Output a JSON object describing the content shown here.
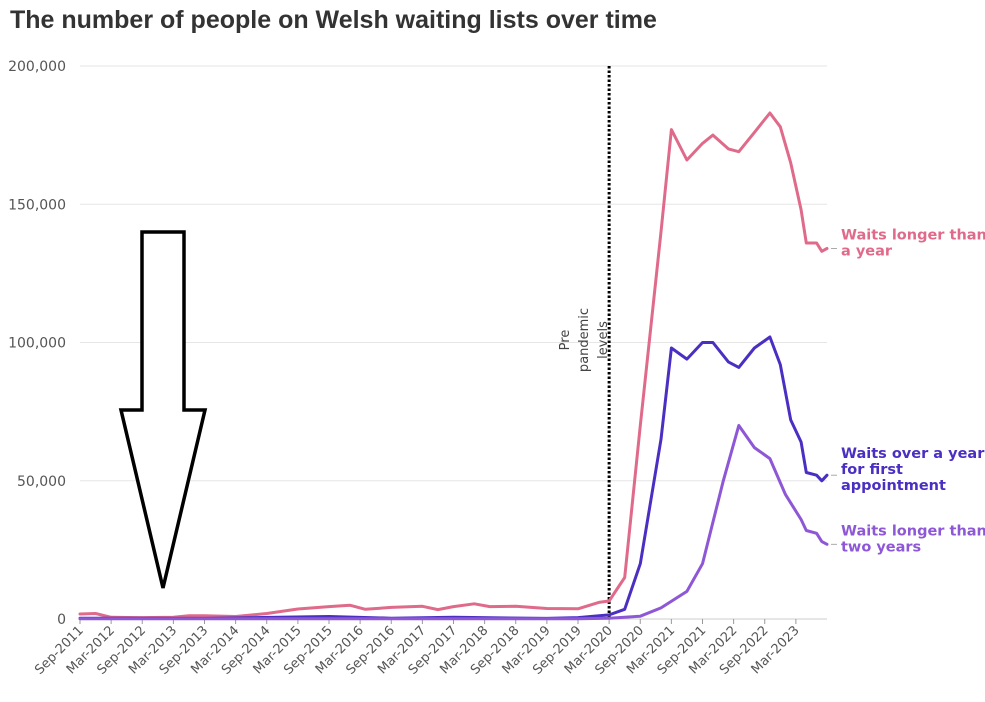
{
  "chart_data": {
    "type": "line",
    "title": "The number of people on Welsh waiting lists over time",
    "ylim": [
      0,
      200000
    ],
    "y_ticks": [
      {
        "value": 0,
        "label": "0"
      },
      {
        "value": 50000,
        "label": "50,000"
      },
      {
        "value": 100000,
        "label": "100,000"
      },
      {
        "value": 150000,
        "label": "150,000"
      },
      {
        "value": 200000,
        "label": "200,000"
      }
    ],
    "x_range": [
      "2011-09",
      "2023-09"
    ],
    "x_ticks": [
      "Sep-2011",
      "Mar-2012",
      "Sep-2012",
      "Mar-2013",
      "Sep-2013",
      "Mar-2014",
      "Sep-2014",
      "Mar-2015",
      "Sep-2015",
      "Mar-2016",
      "Sep-2016",
      "Mar-2017",
      "Sep-2017",
      "Mar-2018",
      "Sep-2018",
      "Mar-2019",
      "Sep-2019",
      "Mar-2020",
      "Sep-2020",
      "Mar-2021",
      "Sep-2021",
      "Mar-2022",
      "Sep-2022",
      "Mar-2023"
    ],
    "grid": true,
    "annotation": {
      "date": "2020-03",
      "lines": [
        "Pre",
        "pandemic",
        "levels"
      ]
    },
    "series": [
      {
        "name": "Waits longer than a year",
        "label_lines": [
          "Waits longer than",
          "a year"
        ],
        "color": "#e06a8a",
        "points": [
          [
            "2011-09",
            1800
          ],
          [
            "2011-12",
            2000
          ],
          [
            "2012-03",
            600
          ],
          [
            "2012-09",
            500
          ],
          [
            "2013-03",
            600
          ],
          [
            "2013-06",
            1200
          ],
          [
            "2013-09",
            1200
          ],
          [
            "2014-03",
            900
          ],
          [
            "2014-09",
            2000
          ],
          [
            "2015-03",
            3600
          ],
          [
            "2015-09",
            4500
          ],
          [
            "2016-01",
            5000
          ],
          [
            "2016-04",
            3500
          ],
          [
            "2016-09",
            4200
          ],
          [
            "2017-03",
            4600
          ],
          [
            "2017-06",
            3400
          ],
          [
            "2017-09",
            4500
          ],
          [
            "2018-01",
            5500
          ],
          [
            "2018-04",
            4500
          ],
          [
            "2018-09",
            4600
          ],
          [
            "2019-03",
            3800
          ],
          [
            "2019-09",
            3700
          ],
          [
            "2020-01",
            6000
          ],
          [
            "2020-03",
            6500
          ],
          [
            "2020-06",
            15000
          ],
          [
            "2020-09",
            70000
          ],
          [
            "2021-01",
            140000
          ],
          [
            "2021-03",
            177000
          ],
          [
            "2021-06",
            166000
          ],
          [
            "2021-09",
            172000
          ],
          [
            "2021-11",
            175000
          ],
          [
            "2022-02",
            170000
          ],
          [
            "2022-04",
            169000
          ],
          [
            "2022-07",
            176000
          ],
          [
            "2022-10",
            183000
          ],
          [
            "2022-12",
            178000
          ],
          [
            "2023-02",
            165000
          ],
          [
            "2023-04",
            148000
          ],
          [
            "2023-05",
            136000
          ],
          [
            "2023-07",
            136000
          ],
          [
            "2023-08",
            133000
          ],
          [
            "2023-09",
            134000
          ]
        ]
      },
      {
        "name": "Waits over a year for first appointment",
        "label_lines": [
          "Waits over a year",
          "for first",
          "appointment"
        ],
        "color": "#4b2fc2",
        "points": [
          [
            "2011-09",
            300
          ],
          [
            "2013-09",
            200
          ],
          [
            "2015-09",
            900
          ],
          [
            "2016-09",
            300
          ],
          [
            "2017-09",
            600
          ],
          [
            "2019-03",
            200
          ],
          [
            "2019-09",
            500
          ],
          [
            "2020-03",
            1500
          ],
          [
            "2020-06",
            3500
          ],
          [
            "2020-09",
            20000
          ],
          [
            "2021-01",
            65000
          ],
          [
            "2021-03",
            98000
          ],
          [
            "2021-06",
            94000
          ],
          [
            "2021-09",
            100000
          ],
          [
            "2021-11",
            100000
          ],
          [
            "2022-02",
            93000
          ],
          [
            "2022-04",
            91000
          ],
          [
            "2022-07",
            98000
          ],
          [
            "2022-10",
            102000
          ],
          [
            "2022-12",
            92000
          ],
          [
            "2023-02",
            72000
          ],
          [
            "2023-04",
            64000
          ],
          [
            "2023-05",
            53000
          ],
          [
            "2023-07",
            52000
          ],
          [
            "2023-08",
            50000
          ],
          [
            "2023-09",
            52000
          ]
        ]
      },
      {
        "name": "Waits longer than two years",
        "label_lines": [
          "Waits longer than",
          "two years"
        ],
        "color": "#8e57d6",
        "points": [
          [
            "2011-09",
            100
          ],
          [
            "2019-09",
            100
          ],
          [
            "2020-03",
            300
          ],
          [
            "2020-09",
            1000
          ],
          [
            "2021-01",
            4000
          ],
          [
            "2021-06",
            10000
          ],
          [
            "2021-09",
            20000
          ],
          [
            "2022-01",
            50000
          ],
          [
            "2022-04",
            70000
          ],
          [
            "2022-07",
            62000
          ],
          [
            "2022-10",
            58000
          ],
          [
            "2023-01",
            45000
          ],
          [
            "2023-04",
            36000
          ],
          [
            "2023-05",
            32000
          ],
          [
            "2023-07",
            31000
          ],
          [
            "2023-08",
            28000
          ],
          [
            "2023-09",
            27000
          ]
        ]
      }
    ]
  }
}
